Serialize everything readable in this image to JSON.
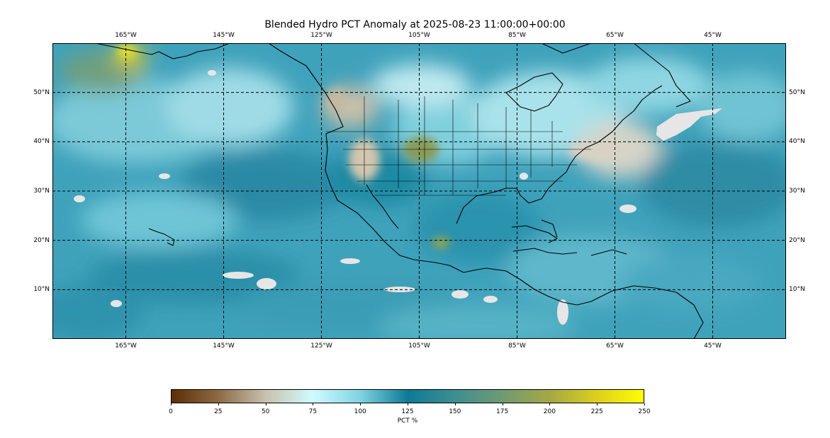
{
  "title": "Blended Hydro PCT Anomaly at 2025-08-23 11:00:00+00:00",
  "map": {
    "projection": "PlateCarree",
    "lon_range": [
      -180,
      -30
    ],
    "lat_range": [
      0,
      60
    ],
    "gridlines": "dashed black",
    "coastlines": true,
    "us_state_borders": true,
    "missing_data_color": "#e6e6e6",
    "lon_ticks": [
      {
        "value": -165,
        "label": "165°W"
      },
      {
        "value": -145,
        "label": "145°W"
      },
      {
        "value": -125,
        "label": "125°W"
      },
      {
        "value": -105,
        "label": "105°W"
      },
      {
        "value": -85,
        "label": "85°W"
      },
      {
        "value": -65,
        "label": "65°W"
      },
      {
        "value": -45,
        "label": "45°W"
      }
    ],
    "lat_ticks": [
      {
        "value": 50,
        "label": "50°N"
      },
      {
        "value": 40,
        "label": "40°N"
      },
      {
        "value": 30,
        "label": "30°N"
      },
      {
        "value": 20,
        "label": "20°N"
      },
      {
        "value": 10,
        "label": "10°N"
      }
    ]
  },
  "colorbar": {
    "label": "PCT %",
    "range": [
      0,
      250
    ],
    "ticks": [
      "0",
      "25",
      "50",
      "75",
      "100",
      "125",
      "150",
      "175",
      "200",
      "225",
      "250"
    ],
    "colors": [
      "#5c2d04",
      "#8c6a44",
      "#c9c0ae",
      "#cffbff",
      "#7fd4e3",
      "#0e7a96",
      "#3c8f90",
      "#6f9a72",
      "#a4a843",
      "#dcd01c",
      "#ffff00"
    ]
  }
}
